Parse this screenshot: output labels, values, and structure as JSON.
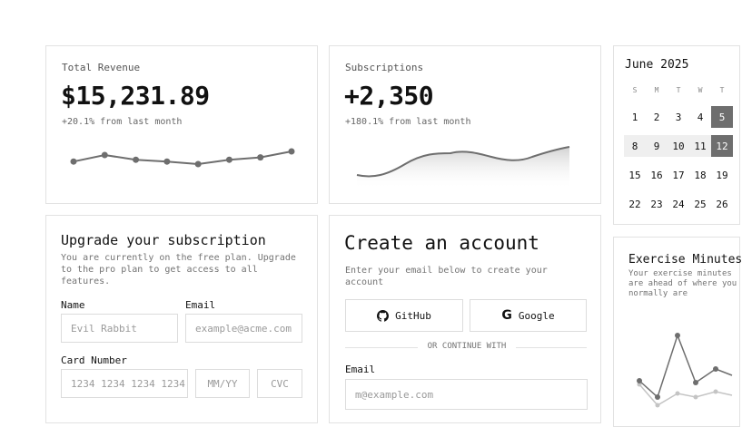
{
  "revenue_card": {
    "title": "Total Revenue",
    "value": "$15,231.89",
    "change": "+20.1% from last month",
    "sparkline": [
      0.44,
      0.8,
      0.54,
      0.44,
      0.3,
      0.54,
      0.67,
      1.0
    ]
  },
  "subscriptions_card": {
    "title": "Subscriptions",
    "value": "+2,350",
    "change": "+180.1% from last month"
  },
  "calendar": {
    "month": "June 2025",
    "weekdays": [
      "S",
      "M",
      "T",
      "W",
      "T"
    ],
    "rows": [
      [
        "1",
        "2",
        "3",
        "4",
        "5"
      ],
      [
        "8",
        "9",
        "10",
        "11",
        "12"
      ],
      [
        "15",
        "16",
        "17",
        "18",
        "19"
      ],
      [
        "22",
        "23",
        "24",
        "25",
        "26"
      ]
    ],
    "selected": [
      "5",
      "12"
    ],
    "range_row": 1
  },
  "upgrade_card": {
    "title": "Upgrade your subscription",
    "description": "You are currently on the free plan. Upgrade to the pro plan to get access to all features.",
    "name_label": "Name",
    "name_placeholder": "Evil Rabbit",
    "email_label": "Email",
    "email_placeholder": "example@acme.com",
    "card_label": "Card Number",
    "card_placeholder": "1234 1234 1234 1234",
    "expiry_placeholder": "MM/YY",
    "cvc_placeholder": "CVC"
  },
  "create_account_card": {
    "title": "Create an account",
    "description": "Enter your email below to create your account",
    "github_label": "GitHub",
    "google_label": "Google",
    "divider_text": "OR CONTINUE WITH",
    "email_label": "Email",
    "email_placeholder": "m@example.com"
  },
  "exercise_card": {
    "title": "Exercise Minutes",
    "description": "Your exercise minutes are ahead of where you normally are"
  },
  "colors": {
    "accent": "#6e6e6e",
    "border": "#e2e2e2",
    "muted": "#737373"
  }
}
